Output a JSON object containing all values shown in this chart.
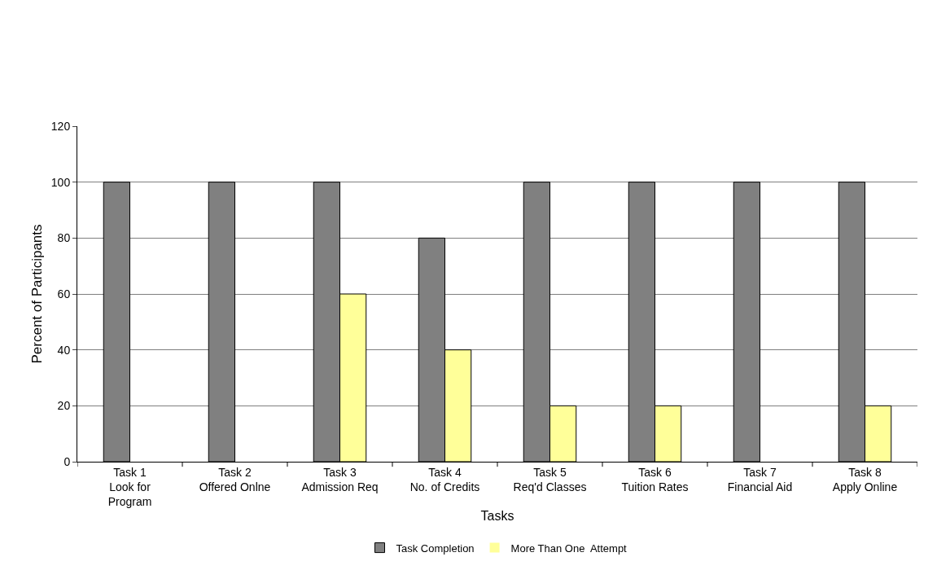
{
  "chart_data": {
    "type": "bar",
    "xlabel": "Tasks",
    "ylabel": "Percent of Participants",
    "categories": [
      "Task 1\nLook for\nProgram",
      "Task 2\nOffered Onlne",
      "Task 3\nAdmission Req",
      "Task 4\nNo. of Credits",
      "Task 5\nReq'd Classes",
      "Task 6\nTuition Rates",
      "Task 7\nFinancial Aid",
      "Task 8\nApply Online"
    ],
    "series": [
      {
        "name": "Task Completion",
        "color": "#808080",
        "values": [
          100,
          100,
          100,
          80,
          100,
          100,
          100,
          100
        ]
      },
      {
        "name": "More Than One  Attempt",
        "color": "#ffff99",
        "values": [
          0,
          0,
          60,
          40,
          20,
          20,
          0,
          20
        ]
      }
    ],
    "ylim": [
      0,
      120
    ],
    "yticks": [
      0,
      20,
      40,
      60,
      80,
      100,
      120
    ],
    "grid": "y",
    "legend": "bottom"
  }
}
